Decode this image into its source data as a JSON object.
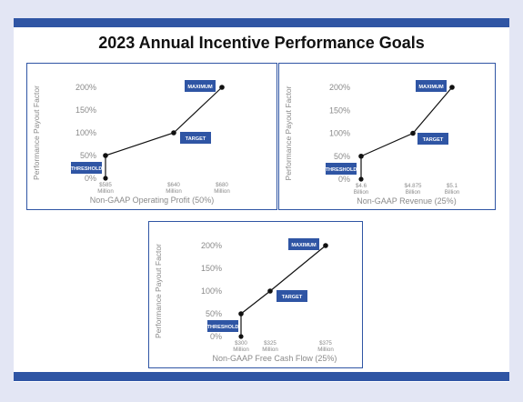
{
  "page": {
    "title": "2023 Annual Incentive Performance Goals",
    "colors": {
      "accent": "#2f55a4",
      "line": "#111111",
      "tick": "#8a8a8a"
    }
  },
  "chart_data": [
    {
      "type": "line",
      "xlabel": "Non-GAAP Operating Profit (50%)",
      "ylabel": "Performance Payout Factor",
      "y_ticks": [
        "0%",
        "50%",
        "100%",
        "150%",
        "200%"
      ],
      "ylim": [
        0,
        200
      ],
      "x_unit": "Million",
      "x": [
        585,
        640,
        680
      ],
      "x_tick_labels": [
        [
          "$585",
          "Million"
        ],
        [
          "$640",
          "Million"
        ],
        [
          "$680",
          "Million"
        ]
      ],
      "values": [
        50,
        100,
        200
      ],
      "annotations": [
        "THRESHOLD",
        "TARGET",
        "MAXIMUM"
      ]
    },
    {
      "type": "line",
      "xlabel": "Non-GAAP Revenue (25%)",
      "ylabel": "Performance Payout Factor",
      "y_ticks": [
        "0%",
        "50%",
        "100%",
        "150%",
        "200%"
      ],
      "ylim": [
        0,
        200
      ],
      "x_unit": "Billion",
      "x": [
        4.6,
        4.875,
        5.1
      ],
      "x_tick_labels": [
        [
          "$4.6",
          "Billion"
        ],
        [
          "$4.875",
          "Billion"
        ],
        [
          "$5.1",
          "Billion"
        ]
      ],
      "values": [
        50,
        100,
        200
      ],
      "annotations": [
        "THRESHOLD",
        "TARGET",
        "MAXIMUM"
      ]
    },
    {
      "type": "line",
      "xlabel": "Non-GAAP Free Cash Flow (25%)",
      "ylabel": "Performance Payout Factor",
      "y_ticks": [
        "0%",
        "50%",
        "100%",
        "150%",
        "200%"
      ],
      "ylim": [
        0,
        200
      ],
      "x_unit": "Million",
      "x": [
        300,
        325,
        375
      ],
      "x_tick_labels": [
        [
          "$300",
          "Million"
        ],
        [
          "$325",
          "Million"
        ],
        [
          "$375",
          "Million"
        ]
      ],
      "values": [
        50,
        100,
        200
      ],
      "annotations": [
        "THRESHOLD",
        "TARGET",
        "MAXIMUM"
      ]
    }
  ]
}
